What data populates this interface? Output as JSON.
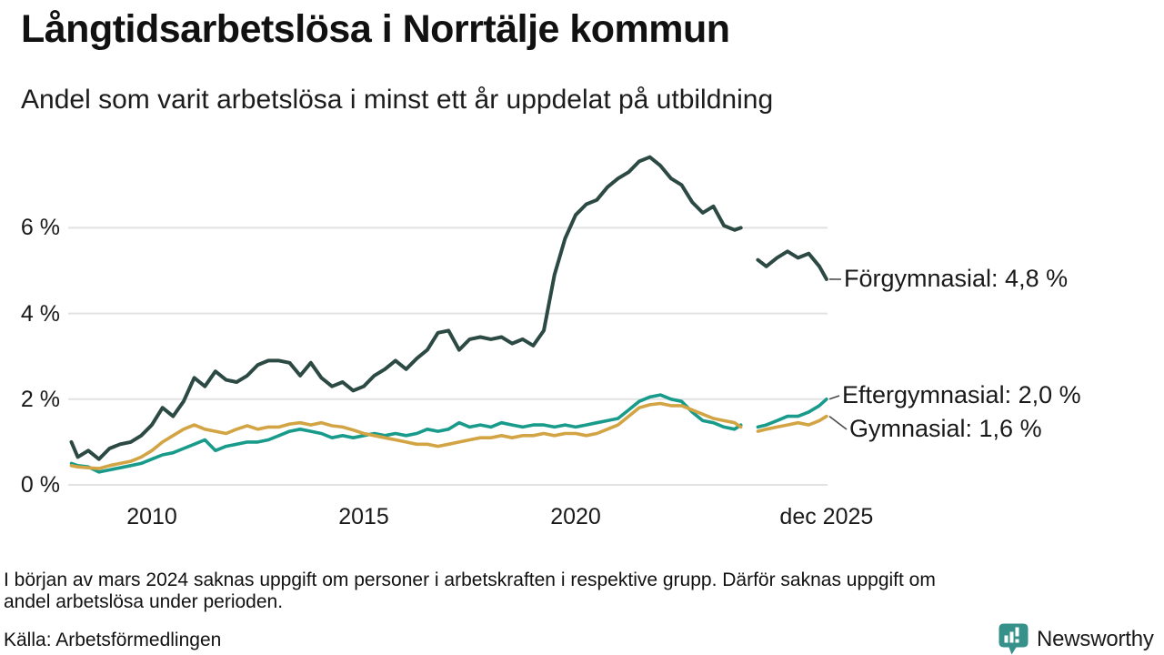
{
  "header": {
    "title": "Långtidsarbetslösa i Norrtälje kommun",
    "subtitle": "Andel som varit arbetslösa i minst ett år uppdelat på utbildning"
  },
  "chart_data": {
    "type": "line",
    "title": "Långtidsarbetslösa i Norrtälje kommun",
    "subtitle": "Andel som varit arbetslösa i minst ett år uppdelat på utbildning",
    "unit": "% (andel)",
    "grid": "horizontal",
    "gridline_color": "#e2e2e2",
    "legend_position": "right-end-labels",
    "x_axis": {
      "range": [
        2007.5,
        2026.0
      ],
      "ticks": [
        {
          "x": 2010,
          "label": "2010"
        },
        {
          "x": 2015,
          "label": "2015"
        },
        {
          "x": 2020,
          "label": "2020"
        },
        {
          "x": 2025.92,
          "label": "dec 2025"
        }
      ]
    },
    "y_axis": {
      "range": [
        0,
        7.8
      ],
      "ticks": [
        {
          "value": 0,
          "label": "0 %"
        },
        {
          "value": 2,
          "label": "2 %"
        },
        {
          "value": 4,
          "label": "4 %"
        },
        {
          "value": 6,
          "label": "6 %"
        }
      ]
    },
    "x": [
      2008.1,
      2008.25,
      2008.5,
      2008.75,
      2009,
      2009.25,
      2009.5,
      2009.75,
      2010,
      2010.25,
      2010.5,
      2010.75,
      2011,
      2011.25,
      2011.5,
      2011.75,
      2012,
      2012.25,
      2012.5,
      2012.75,
      2013,
      2013.25,
      2013.5,
      2013.75,
      2014,
      2014.25,
      2014.5,
      2014.75,
      2015,
      2015.25,
      2015.5,
      2015.75,
      2016,
      2016.25,
      2016.5,
      2016.75,
      2017,
      2017.25,
      2017.5,
      2017.75,
      2018,
      2018.25,
      2018.5,
      2018.75,
      2019,
      2019.25,
      2019.5,
      2019.75,
      2020,
      2020.25,
      2020.5,
      2020.75,
      2021,
      2021.25,
      2021.5,
      2021.75,
      2022,
      2022.25,
      2022.5,
      2022.75,
      2023,
      2023.25,
      2023.5,
      2023.75,
      2023.9,
      2024.1,
      2024.3,
      2024.5,
      2024.75,
      2025,
      2025.25,
      2025.5,
      2025.75,
      2025.92
    ],
    "series": [
      {
        "name": "Förgymnasial",
        "color": "#2c4a43",
        "end_label": "Förgymnasial: 4,8 %",
        "end_value": 4.8,
        "values": [
          1.0,
          0.65,
          0.8,
          0.6,
          0.85,
          0.95,
          1.0,
          1.15,
          1.4,
          1.8,
          1.6,
          1.95,
          2.5,
          2.3,
          2.65,
          2.45,
          2.4,
          2.55,
          2.8,
          2.9,
          2.9,
          2.85,
          2.55,
          2.85,
          2.5,
          2.3,
          2.4,
          2.2,
          2.3,
          2.55,
          2.7,
          2.9,
          2.7,
          2.95,
          3.15,
          3.55,
          3.6,
          3.15,
          3.4,
          3.45,
          3.4,
          3.45,
          3.3,
          3.4,
          3.25,
          3.6,
          4.9,
          5.75,
          6.3,
          6.55,
          6.65,
          6.95,
          7.15,
          7.3,
          7.55,
          7.65,
          7.45,
          7.15,
          7.0,
          6.6,
          6.35,
          6.5,
          6.05,
          5.95,
          6.0,
          null,
          5.25,
          5.1,
          5.3,
          5.45,
          5.3,
          5.4,
          5.1,
          4.8
        ]
      },
      {
        "name": "Eftergymnasial",
        "color": "#189b8a",
        "end_label": "Eftergymnasial: 2,0 %",
        "end_value": 2.0,
        "values": [
          0.5,
          0.45,
          0.42,
          0.3,
          0.35,
          0.4,
          0.45,
          0.5,
          0.6,
          0.7,
          0.75,
          0.85,
          0.95,
          1.05,
          0.8,
          0.9,
          0.95,
          1.0,
          1.0,
          1.05,
          1.15,
          1.25,
          1.3,
          1.25,
          1.2,
          1.1,
          1.15,
          1.1,
          1.15,
          1.2,
          1.15,
          1.2,
          1.15,
          1.2,
          1.3,
          1.25,
          1.3,
          1.45,
          1.35,
          1.4,
          1.35,
          1.45,
          1.4,
          1.35,
          1.4,
          1.4,
          1.35,
          1.4,
          1.35,
          1.4,
          1.45,
          1.5,
          1.55,
          1.75,
          1.95,
          2.05,
          2.1,
          2.0,
          1.95,
          1.7,
          1.5,
          1.45,
          1.35,
          1.3,
          1.4,
          null,
          1.35,
          1.4,
          1.5,
          1.6,
          1.6,
          1.7,
          1.85,
          2.0
        ]
      },
      {
        "name": "Gymnasial",
        "color": "#d3a444",
        "end_label": "Gymnasial: 1,6 %",
        "end_value": 1.6,
        "values": [
          0.45,
          0.42,
          0.4,
          0.38,
          0.45,
          0.5,
          0.55,
          0.65,
          0.8,
          1.0,
          1.15,
          1.3,
          1.4,
          1.3,
          1.25,
          1.2,
          1.3,
          1.38,
          1.3,
          1.35,
          1.35,
          1.42,
          1.45,
          1.4,
          1.45,
          1.38,
          1.35,
          1.28,
          1.2,
          1.15,
          1.1,
          1.05,
          1.0,
          0.95,
          0.95,
          0.9,
          0.95,
          1.0,
          1.05,
          1.1,
          1.1,
          1.15,
          1.1,
          1.15,
          1.15,
          1.2,
          1.15,
          1.2,
          1.2,
          1.15,
          1.2,
          1.3,
          1.4,
          1.6,
          1.8,
          1.87,
          1.9,
          1.85,
          1.85,
          1.75,
          1.65,
          1.55,
          1.5,
          1.45,
          1.35,
          null,
          1.25,
          1.3,
          1.35,
          1.4,
          1.45,
          1.4,
          1.5,
          1.6
        ]
      }
    ],
    "data_gap": {
      "from_x": 2023.9,
      "to_x": 2024.3
    }
  },
  "footer": {
    "note_line1": "I början av mars 2024 saknas uppgift om personer i arbetskraften i respektive grupp. Därför saknas uppgift om",
    "note_line2": "andel arbetslösa under perioden.",
    "source": "Källa: Arbetsförmedlingen",
    "logo_text": "Newsworthy",
    "logo_color": "#35918a"
  }
}
